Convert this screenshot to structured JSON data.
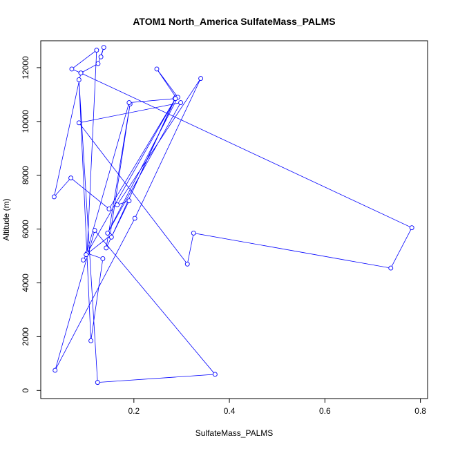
{
  "chart_data": {
    "type": "line",
    "title": "ATOM1 North_America SulfateMass_PALMS",
    "xlabel": "SulfateMass_PALMS",
    "ylabel": "Altitude (m)",
    "xlim": [
      0.005,
      0.815
    ],
    "ylim": [
      -300,
      13000
    ],
    "xticks": [
      0.2,
      0.4,
      0.6,
      0.8
    ],
    "xtick_labels": [
      "0.2",
      "0.4",
      "0.6",
      "0.8"
    ],
    "yticks": [
      0,
      2000,
      4000,
      6000,
      8000,
      10000,
      12000
    ],
    "ytick_labels": [
      "0",
      "2000",
      "4000",
      "6000",
      "8000",
      "10000",
      "12000"
    ],
    "grid": false,
    "legend": "none",
    "series": [
      {
        "color": "#0000ff",
        "marker": "open-circle",
        "x": [
          0.131,
          0.137,
          0.125,
          0.089,
          0.07,
          0.122,
          0.102,
          0.135,
          0.11,
          0.085,
          0.124,
          0.37,
          0.118,
          0.035,
          0.202,
          0.34,
          0.165,
          0.19,
          0.142,
          0.192,
          0.15,
          0.1,
          0.19,
          0.286,
          0.153,
          0.288,
          0.248,
          0.292,
          0.145,
          0.298,
          0.085,
          0.312,
          0.325,
          0.738,
          0.782,
          0.089,
          0.033,
          0.068,
          0.148,
          0.287,
          0.094
        ],
        "y": [
          12400,
          12750,
          12150,
          11800,
          11950,
          12650,
          5100,
          4900,
          1850,
          11550,
          300,
          600,
          5950,
          750,
          6400,
          11600,
          6900,
          7050,
          5300,
          10650,
          5750,
          5050,
          10700,
          10850,
          5700,
          10900,
          11950,
          10900,
          5850,
          10700,
          9950,
          4700,
          5850,
          4550,
          6050,
          11800,
          7200,
          7900,
          6750,
          10850,
          4850
        ]
      }
    ]
  }
}
